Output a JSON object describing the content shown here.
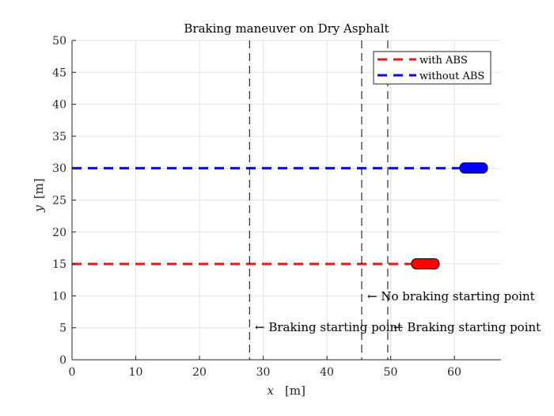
{
  "chart_data": {
    "type": "line",
    "title": "Braking maneuver on Dry Asphalt",
    "xlabel": "x [m]",
    "ylabel": "y [m]",
    "xlim": [
      0,
      67.3
    ],
    "ylim": [
      0,
      50
    ],
    "xticks": [
      0,
      10,
      20,
      30,
      40,
      50,
      60
    ],
    "yticks": [
      0,
      5,
      10,
      15,
      20,
      25,
      30,
      35,
      40,
      45,
      50
    ],
    "grid": true,
    "legend_position": "upper right",
    "series": [
      {
        "name": "with ABS",
        "color": "#e41a1a",
        "style": "dashed",
        "x": [
          0,
          53.5
        ],
        "y": [
          15,
          15
        ]
      },
      {
        "name": "without ABS",
        "color": "#0000e6",
        "style": "dashed",
        "x": [
          0,
          61
        ],
        "y": [
          30,
          30
        ]
      }
    ],
    "vehicles": [
      {
        "name": "car-with-abs",
        "color": "#ff0000",
        "x_start": 53.5,
        "x_end": 57.8,
        "y": 15
      },
      {
        "name": "car-without-abs",
        "color": "#0000ff",
        "x_start": 61.0,
        "x_end": 65.3,
        "y": 30
      }
    ],
    "vertical_lines": [
      {
        "x": 27.9,
        "label": "← Braking starting point",
        "label_y": 5
      },
      {
        "x": 45.5,
        "label": "← No braking starting point",
        "label_y": 10
      },
      {
        "x": 49.6,
        "label": "← Braking starting point",
        "label_y": 5
      }
    ]
  },
  "labels": {
    "title": "Braking maneuver on Dry Asphalt",
    "xlabel_var": "x",
    "xlabel_unit": "[m]",
    "ylabel_var": "y",
    "ylabel_unit": "[m]",
    "legend_with": "with ABS",
    "legend_without": "without ABS",
    "ann_braking_1": "← Braking starting point",
    "ann_no_braking": "← No braking starting point",
    "ann_braking_2": "← Braking starting point"
  },
  "ticks": {
    "x": [
      "0",
      "10",
      "20",
      "30",
      "40",
      "50",
      "60"
    ],
    "y": [
      "0",
      "5",
      "10",
      "15",
      "20",
      "25",
      "30",
      "35",
      "40",
      "45",
      "50"
    ]
  }
}
